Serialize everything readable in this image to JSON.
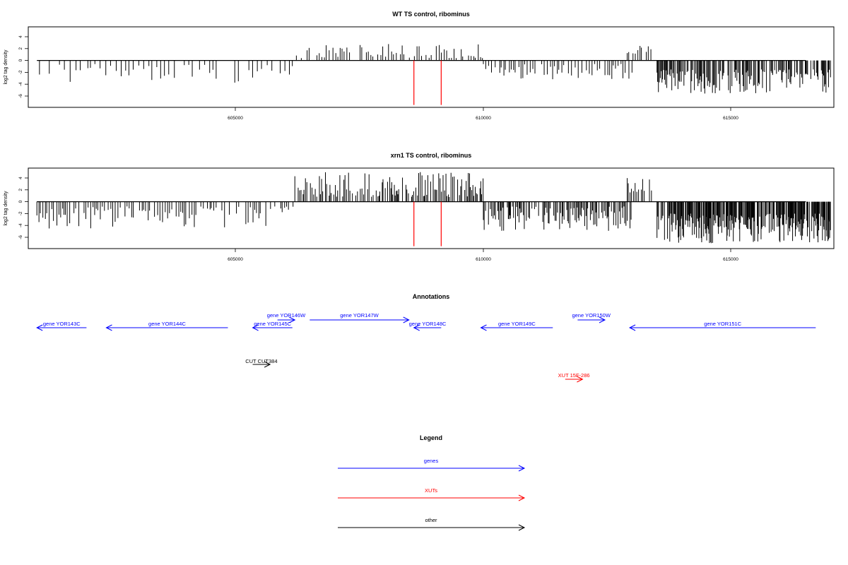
{
  "panels": [
    {
      "title": "WT TS control, ribominus",
      "ylabel": "log2 tag density",
      "yticks": [
        "4",
        "2",
        "0",
        "-2",
        "-4",
        "-6"
      ],
      "xticks": [
        "605000",
        "610000",
        "615000"
      ]
    },
    {
      "title": "xrn1 TS control, ribominus",
      "ylabel": "log2 tag density",
      "yticks": [
        "4",
        "2",
        "0",
        "-2",
        "-4",
        "-6"
      ],
      "xticks": [
        "605000",
        "610000",
        "615000"
      ]
    }
  ],
  "annotations_title": "Annotations",
  "legend_title": "Legend",
  "legend": [
    {
      "label": "genes",
      "color": "#0000ff"
    },
    {
      "label": "XUTs",
      "color": "#ff0000"
    },
    {
      "label": "other",
      "color": "#000000"
    }
  ],
  "chart_data": [
    {
      "type": "bar",
      "title": "WT TS control, ribominus",
      "ylabel": "log2 tag density",
      "xlim": [
        600700,
        617000
      ],
      "ylim": [
        -7.5,
        5.5
      ],
      "segments": [
        {
          "x": [
            601000,
            606200
          ],
          "sign": -1,
          "lo": 0.6,
          "hi": 3.8,
          "step": 85
        },
        {
          "x": [
            606200,
            610000
          ],
          "sign": 1,
          "lo": 0.4,
          "hi": 3.0,
          "step": 45
        },
        {
          "x": [
            610000,
            613000
          ],
          "sign": -1,
          "lo": 0.6,
          "hi": 3.2,
          "step": 45
        },
        {
          "x": [
            612900,
            613400
          ],
          "sign": 1,
          "lo": 1.0,
          "hi": 3.3,
          "step": 40
        },
        {
          "x": [
            613500,
            617000
          ],
          "sign": -1,
          "lo": 1.5,
          "hi": 5.6,
          "step": 18
        }
      ],
      "red_markers": [
        {
          "x": 608600,
          "y": -7.5
        },
        {
          "x": 609150,
          "y": -7.5
        }
      ],
      "color": "#000000",
      "marker_color": "#ff0000"
    },
    {
      "type": "bar",
      "title": "xrn1 TS control, ribominus",
      "ylabel": "log2 tag density",
      "xlim": [
        600700,
        617000
      ],
      "ylim": [
        -7.5,
        5.5
      ],
      "segments": [
        {
          "x": [
            601000,
            606200
          ],
          "sign": -1,
          "lo": 0.8,
          "hi": 4.6,
          "step": 40
        },
        {
          "x": [
            606200,
            610000
          ],
          "sign": 1,
          "lo": 0.8,
          "hi": 5.0,
          "step": 25
        },
        {
          "x": [
            610000,
            613000
          ],
          "sign": -1,
          "lo": 0.8,
          "hi": 5.0,
          "step": 22
        },
        {
          "x": [
            612900,
            613400
          ],
          "sign": 1,
          "lo": 1.2,
          "hi": 4.0,
          "step": 30
        },
        {
          "x": [
            613500,
            617000
          ],
          "sign": -1,
          "lo": 2.0,
          "hi": 7.0,
          "step": 12
        }
      ],
      "red_markers": [
        {
          "x": 608600,
          "y": -7.5
        },
        {
          "x": 609150,
          "y": -7.5
        }
      ],
      "color": "#000000",
      "marker_color": "#ff0000"
    }
  ],
  "features": [
    {
      "label": "gene YOR143C",
      "color": "#0000ff",
      "x1": 602000,
      "x2": 601000,
      "row": 1
    },
    {
      "label": "gene YOR144C",
      "color": "#0000ff",
      "x1": 604850,
      "x2": 602400,
      "row": 1
    },
    {
      "label": "gene YOR145C",
      "color": "#0000ff",
      "x1": 606150,
      "x2": 605350,
      "row": 1
    },
    {
      "label": "gene YOR146W",
      "color": "#0000ff",
      "x1": 605850,
      "x2": 606200,
      "row": 0
    },
    {
      "label": "gene YOR147W",
      "color": "#0000ff",
      "x1": 606500,
      "x2": 608500,
      "row": 0
    },
    {
      "label": "gene YOR148C",
      "color": "#0000ff",
      "x1": 609150,
      "x2": 608600,
      "row": 1
    },
    {
      "label": "gene YOR149C",
      "color": "#0000ff",
      "x1": 611400,
      "x2": 609950,
      "row": 1
    },
    {
      "label": "gene YOR150W",
      "color": "#0000ff",
      "x1": 611900,
      "x2": 612450,
      "row": 0
    },
    {
      "label": "gene YOR151C",
      "color": "#0000ff",
      "x1": 616700,
      "x2": 612950,
      "row": 1
    },
    {
      "label": "CUT CUT384",
      "color": "#000000",
      "x1": 605350,
      "x2": 605700,
      "row": 2
    },
    {
      "label": "XUT 15F-286",
      "color": "#ff0000",
      "x1": 611650,
      "x2": 612000,
      "row": 3
    }
  ]
}
